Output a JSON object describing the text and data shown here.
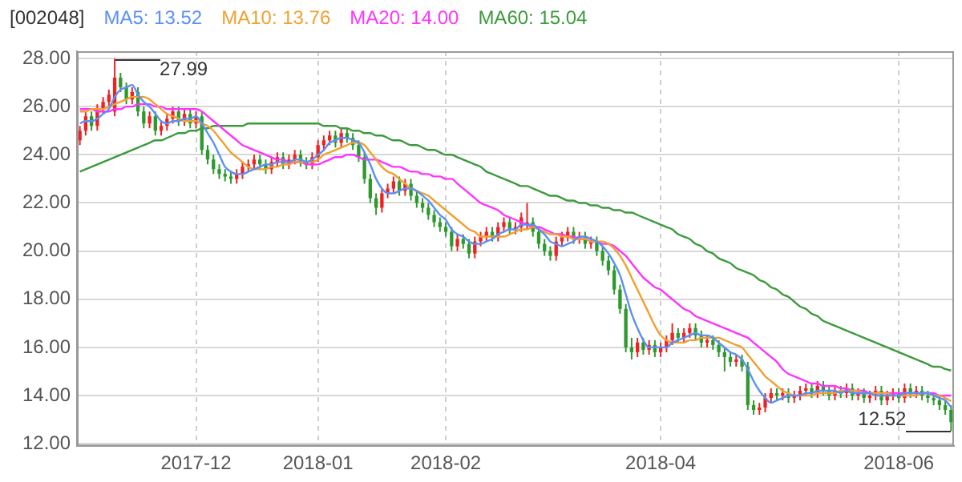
{
  "chart_data": {
    "type": "candlestick",
    "title": "[002048]",
    "legend": "top left",
    "grid": true,
    "categories": [
      null,
      null,
      null,
      null,
      null,
      null,
      null,
      null,
      null,
      null,
      null,
      null,
      null,
      null,
      null,
      null,
      null,
      null,
      null,
      null,
      "2017-12",
      null,
      null,
      null,
      null,
      null,
      null,
      null,
      null,
      null,
      null,
      null,
      null,
      null,
      null,
      null,
      null,
      null,
      null,
      null,
      null,
      "2018-01",
      null,
      null,
      null,
      null,
      null,
      null,
      null,
      null,
      null,
      null,
      null,
      null,
      null,
      null,
      null,
      null,
      null,
      null,
      null,
      null,
      null,
      "2018-02",
      null,
      null,
      null,
      null,
      null,
      null,
      null,
      null,
      null,
      null,
      null,
      null,
      null,
      null,
      null,
      null,
      null,
      null,
      null,
      null,
      null,
      null,
      null,
      null,
      null,
      null,
      null,
      null,
      null,
      null,
      null,
      null,
      null,
      null,
      null,
      null,
      "2018-04",
      null,
      null,
      null,
      null,
      null,
      null,
      null,
      null,
      null,
      null,
      null,
      null,
      null,
      null,
      null,
      null,
      null,
      null,
      null,
      null,
      null,
      null,
      null,
      null,
      null,
      null,
      null,
      null,
      null,
      null,
      null,
      null,
      null,
      null,
      null,
      null,
      null,
      null,
      null,
      null,
      "2018-06",
      null,
      null,
      null,
      null,
      null,
      null,
      null,
      null,
      null
    ],
    "colors": [
      "#ee2222",
      "#ee2222",
      "#2e9a2e",
      "#ee2222",
      "#ee2222",
      "#ee2222",
      "#ee2222",
      "#2e9a2e",
      "#2e9a2e",
      "#ee2222",
      "#2e9a2e",
      "#2e9a2e",
      "#ee2222",
      "#2e9a2e",
      "#ee2222",
      "#ee2222",
      "#ee2222",
      "#2e9a2e",
      "#ee2222",
      "#2e9a2e",
      "#ee2222",
      "#2e9a2e",
      "#2e9a2e",
      "#2e9a2e",
      "#2e9a2e",
      "#2e9a2e",
      "#2e9a2e",
      "#ee2222",
      "#ee2222",
      "#ee2222",
      "#ee2222",
      "#2e9a2e",
      "#2e9a2e",
      "#ee2222",
      "#ee2222",
      "#2e9a2e",
      "#ee2222",
      "#ee2222",
      "#2e9a2e",
      "#2e9a2e",
      "#ee2222",
      "#ee2222",
      "#ee2222",
      "#ee2222",
      "#2e9a2e",
      "#ee2222",
      "#2e9a2e",
      "#2e9a2e",
      "#2e9a2e",
      "#2e9a2e",
      "#2e9a2e",
      "#2e9a2e",
      "#ee2222",
      "#ee2222",
      "#ee2222",
      "#2e9a2e",
      "#ee2222",
      "#2e9a2e",
      "#2e9a2e",
      "#2e9a2e",
      "#2e9a2e",
      "#2e9a2e",
      "#2e9a2e",
      "#2e9a2e",
      "#2e9a2e",
      "#ee2222",
      "#2e9a2e",
      "#2e9a2e",
      "#ee2222",
      "#ee2222",
      "#ee2222",
      "#2e9a2e",
      "#ee2222",
      "#ee2222",
      "#2e9a2e",
      "#ee2222",
      "#ee2222",
      "#ee2222",
      "#2e9a2e",
      "#2e9a2e",
      "#2e9a2e",
      "#2e9a2e",
      "#ee2222",
      "#ee2222",
      "#ee2222",
      "#2e9a2e",
      "#ee2222",
      "#2e9a2e",
      "#ee2222",
      "#2e9a2e",
      "#2e9a2e",
      "#2e9a2e",
      "#2e9a2e",
      "#2e9a2e",
      "#2e9a2e",
      "#2e9a2e",
      "#ee2222",
      "#2e9a2e",
      "#ee2222",
      "#2e9a2e",
      "#ee2222",
      "#ee2222",
      "#ee2222",
      "#2e9a2e",
      "#ee2222",
      "#ee2222",
      "#2e9a2e",
      "#2e9a2e",
      "#ee2222",
      "#2e9a2e",
      "#2e9a2e",
      "#2e9a2e",
      "#2e9a2e",
      "#ee2222",
      "#2e9a2e",
      "#2e9a2e",
      "#2e9a2e",
      "#ee2222",
      "#ee2222",
      "#ee2222",
      "#2e9a2e",
      "#ee2222",
      "#2e9a2e",
      "#ee2222",
      "#ee2222",
      "#ee2222",
      "#2e9a2e",
      "#ee2222",
      "#2e9a2e",
      "#2e9a2e",
      "#ee2222",
      "#2e9a2e",
      "#ee2222",
      "#2e9a2e",
      "#ee2222",
      "#2e9a2e",
      "#ee2222",
      "#ee2222",
      "#2e9a2e",
      "#ee2222",
      "#ee2222",
      "#2e9a2e",
      "#ee2222",
      "#2e9a2e",
      "#ee2222",
      "#2e9a2e",
      "#2e9a2e",
      "#2e9a2e",
      "#2e9a2e",
      "#2e9a2e",
      "#2e9a2e"
    ],
    "ohlc": [
      [
        24.6,
        25.2,
        24.4,
        25.0
      ],
      [
        25.0,
        25.8,
        24.8,
        25.6
      ],
      [
        25.6,
        25.8,
        25.0,
        25.2
      ],
      [
        25.2,
        26.1,
        25.0,
        25.9
      ],
      [
        25.9,
        26.4,
        25.7,
        26.2
      ],
      [
        26.2,
        26.7,
        26.0,
        26.5
      ],
      [
        25.8,
        27.99,
        25.6,
        27.2
      ],
      [
        27.2,
        27.4,
        26.6,
        26.8
      ],
      [
        26.8,
        27.0,
        26.1,
        26.3
      ],
      [
        26.3,
        26.8,
        26.1,
        26.6
      ],
      [
        26.6,
        26.8,
        25.6,
        25.8
      ],
      [
        25.8,
        26.0,
        25.1,
        25.3
      ],
      [
        25.3,
        25.8,
        25.1,
        25.6
      ],
      [
        25.6,
        25.8,
        24.8,
        25.0
      ],
      [
        25.0,
        25.4,
        24.8,
        25.2
      ],
      [
        25.2,
        25.7,
        25.0,
        25.5
      ],
      [
        25.5,
        26.0,
        25.3,
        25.8
      ],
      [
        25.8,
        26.0,
        25.2,
        25.4
      ],
      [
        25.4,
        25.9,
        25.2,
        25.7
      ],
      [
        25.7,
        25.9,
        25.1,
        25.3
      ],
      [
        25.3,
        25.8,
        25.1,
        25.6
      ],
      [
        25.6,
        25.8,
        24.0,
        24.2
      ],
      [
        24.2,
        24.4,
        23.6,
        23.8
      ],
      [
        23.8,
        24.0,
        23.2,
        23.4
      ],
      [
        23.4,
        23.6,
        23.0,
        23.2
      ],
      [
        23.2,
        23.4,
        22.9,
        23.1
      ],
      [
        23.1,
        23.3,
        22.8,
        23.0
      ],
      [
        23.0,
        23.4,
        22.8,
        23.2
      ],
      [
        23.2,
        23.7,
        23.0,
        23.5
      ],
      [
        23.5,
        23.8,
        23.3,
        23.6
      ],
      [
        23.6,
        24.0,
        23.4,
        23.8
      ],
      [
        23.8,
        24.0,
        23.4,
        23.6
      ],
      [
        23.6,
        23.8,
        23.2,
        23.4
      ],
      [
        23.4,
        23.9,
        23.2,
        23.7
      ],
      [
        23.7,
        24.1,
        23.5,
        23.9
      ],
      [
        23.9,
        24.1,
        23.4,
        23.6
      ],
      [
        23.6,
        24.0,
        23.4,
        23.8
      ],
      [
        23.8,
        24.2,
        23.6,
        24.0
      ],
      [
        24.0,
        24.2,
        23.5,
        23.7
      ],
      [
        23.7,
        23.9,
        23.4,
        23.6
      ],
      [
        23.6,
        24.1,
        23.4,
        23.9
      ],
      [
        23.9,
        24.6,
        23.7,
        24.4
      ],
      [
        24.4,
        24.8,
        24.2,
        24.6
      ],
      [
        24.6,
        25.0,
        24.4,
        24.8
      ],
      [
        24.8,
        25.0,
        24.3,
        24.5
      ],
      [
        24.5,
        25.1,
        24.3,
        24.9
      ],
      [
        24.9,
        25.1,
        24.5,
        24.7
      ],
      [
        24.7,
        24.9,
        24.2,
        24.4
      ],
      [
        24.4,
        24.6,
        23.7,
        23.9
      ],
      [
        23.9,
        24.1,
        22.8,
        23.0
      ],
      [
        23.0,
        23.2,
        22.0,
        22.2
      ],
      [
        22.2,
        22.4,
        21.5,
        21.8
      ],
      [
        21.8,
        22.6,
        21.6,
        22.4
      ],
      [
        22.4,
        22.8,
        22.2,
        22.6
      ],
      [
        22.6,
        23.1,
        22.4,
        22.9
      ],
      [
        22.9,
        23.1,
        22.3,
        22.5
      ],
      [
        22.5,
        23.0,
        22.3,
        22.8
      ],
      [
        22.8,
        23.0,
        22.1,
        22.3
      ],
      [
        22.3,
        22.5,
        21.8,
        22.0
      ],
      [
        22.0,
        22.2,
        21.6,
        21.8
      ],
      [
        21.8,
        22.0,
        21.3,
        21.5
      ],
      [
        21.5,
        21.7,
        21.0,
        21.2
      ],
      [
        21.2,
        21.4,
        20.8,
        21.0
      ],
      [
        21.0,
        21.2,
        20.6,
        20.8
      ],
      [
        20.8,
        21.0,
        20.0,
        20.2
      ],
      [
        20.2,
        20.7,
        20.0,
        20.5
      ],
      [
        20.5,
        20.7,
        20.1,
        20.3
      ],
      [
        20.3,
        20.5,
        19.7,
        19.9
      ],
      [
        19.9,
        20.6,
        19.7,
        20.4
      ],
      [
        20.4,
        20.8,
        20.2,
        20.6
      ],
      [
        20.6,
        21.0,
        20.4,
        20.8
      ],
      [
        20.8,
        21.0,
        20.4,
        20.6
      ],
      [
        20.6,
        21.2,
        20.4,
        21.0
      ],
      [
        21.0,
        21.4,
        20.8,
        21.2
      ],
      [
        21.2,
        21.4,
        20.7,
        20.9
      ],
      [
        20.9,
        21.2,
        20.7,
        21.0
      ],
      [
        21.0,
        21.6,
        20.8,
        21.4
      ],
      [
        21.1,
        22.0,
        20.9,
        21.2
      ],
      [
        21.2,
        21.4,
        20.6,
        20.8
      ],
      [
        20.8,
        21.0,
        20.1,
        20.3
      ],
      [
        20.3,
        20.5,
        19.8,
        20.0
      ],
      [
        20.0,
        20.2,
        19.6,
        19.8
      ],
      [
        19.8,
        20.6,
        19.6,
        20.4
      ],
      [
        20.4,
        20.8,
        20.2,
        20.6
      ],
      [
        20.6,
        21.0,
        20.4,
        20.8
      ],
      [
        20.8,
        21.0,
        20.3,
        20.5
      ],
      [
        20.5,
        20.8,
        20.3,
        20.6
      ],
      [
        20.6,
        20.8,
        20.1,
        20.3
      ],
      [
        20.3,
        20.6,
        20.1,
        20.4
      ],
      [
        20.4,
        20.6,
        19.8,
        20.0
      ],
      [
        20.0,
        20.2,
        19.4,
        19.6
      ],
      [
        19.6,
        19.8,
        19.0,
        19.2
      ],
      [
        19.2,
        19.4,
        18.2,
        18.4
      ],
      [
        18.4,
        18.6,
        17.4,
        17.6
      ],
      [
        17.6,
        17.8,
        15.8,
        16.0
      ],
      [
        16.0,
        16.4,
        15.5,
        15.8
      ],
      [
        15.8,
        16.4,
        15.6,
        16.2
      ],
      [
        16.2,
        16.4,
        15.7,
        15.9
      ],
      [
        15.9,
        16.3,
        15.7,
        16.1
      ],
      [
        16.1,
        16.3,
        15.6,
        15.8
      ],
      [
        15.8,
        16.2,
        15.6,
        16.0
      ],
      [
        16.0,
        16.5,
        15.8,
        16.3
      ],
      [
        16.3,
        17.0,
        16.1,
        16.6
      ],
      [
        16.6,
        16.8,
        16.2,
        16.4
      ],
      [
        16.4,
        16.8,
        16.2,
        16.6
      ],
      [
        16.6,
        17.0,
        16.4,
        16.8
      ],
      [
        16.8,
        17.0,
        16.3,
        16.5
      ],
      [
        16.5,
        16.7,
        16.0,
        16.2
      ],
      [
        16.2,
        16.5,
        16.0,
        16.3
      ],
      [
        16.3,
        16.5,
        15.9,
        16.1
      ],
      [
        16.1,
        16.3,
        15.6,
        15.8
      ],
      [
        15.8,
        16.0,
        15.0,
        15.6
      ],
      [
        15.6,
        15.8,
        15.2,
        15.4
      ],
      [
        15.4,
        15.7,
        15.2,
        15.5
      ],
      [
        15.5,
        15.7,
        15.0,
        15.2
      ],
      [
        15.2,
        15.4,
        13.4,
        13.6
      ],
      [
        13.6,
        13.8,
        13.2,
        13.4
      ],
      [
        13.4,
        13.7,
        13.2,
        13.5
      ],
      [
        13.5,
        14.1,
        13.3,
        13.9
      ],
      [
        13.9,
        14.3,
        13.7,
        14.1
      ],
      [
        14.1,
        14.3,
        13.8,
        14.0
      ],
      [
        14.0,
        14.3,
        13.8,
        14.1
      ],
      [
        14.1,
        14.3,
        13.7,
        13.9
      ],
      [
        13.9,
        14.2,
        13.7,
        14.0
      ],
      [
        14.0,
        14.4,
        13.8,
        14.2
      ],
      [
        14.2,
        14.5,
        14.0,
        14.3
      ],
      [
        14.3,
        14.5,
        13.9,
        14.1
      ],
      [
        14.1,
        14.6,
        13.9,
        14.4
      ],
      [
        14.4,
        14.6,
        14.0,
        14.2
      ],
      [
        14.2,
        14.4,
        13.8,
        14.0
      ],
      [
        14.0,
        14.4,
        13.8,
        14.2
      ],
      [
        14.2,
        14.4,
        13.9,
        14.1
      ],
      [
        14.1,
        14.5,
        13.9,
        14.3
      ],
      [
        14.3,
        14.5,
        13.8,
        14.0
      ],
      [
        14.0,
        14.3,
        13.8,
        14.1
      ],
      [
        14.1,
        14.3,
        13.7,
        13.9
      ],
      [
        13.9,
        14.2,
        13.7,
        14.0
      ],
      [
        14.0,
        14.4,
        13.8,
        14.2
      ],
      [
        14.2,
        14.4,
        13.6,
        13.8
      ],
      [
        13.8,
        14.2,
        13.6,
        14.0
      ],
      [
        14.0,
        14.3,
        13.8,
        14.1
      ],
      [
        14.1,
        14.3,
        13.7,
        13.9
      ],
      [
        13.9,
        14.5,
        13.7,
        14.3
      ],
      [
        14.3,
        14.5,
        13.9,
        14.1
      ],
      [
        14.1,
        14.4,
        13.9,
        14.2
      ],
      [
        14.2,
        14.4,
        13.8,
        14.0
      ],
      [
        14.0,
        14.2,
        13.7,
        13.9
      ],
      [
        13.9,
        14.1,
        13.6,
        13.8
      ],
      [
        13.8,
        14.0,
        13.4,
        13.6
      ],
      [
        13.6,
        13.8,
        13.2,
        13.4
      ],
      [
        13.4,
        13.6,
        12.52,
        12.9
      ]
    ],
    "series": [
      {
        "name": "MA5: 13.52",
        "type": "line",
        "color": "#5b8ff9",
        "values": [
          25.3,
          25.4,
          25.4,
          25.5,
          25.7,
          25.9,
          26.4,
          26.7,
          26.8,
          26.9,
          26.5,
          26.2,
          26.0,
          25.7,
          25.4,
          25.3,
          25.4,
          25.4,
          25.5,
          25.5,
          25.6,
          25.3,
          24.9,
          24.5,
          24.0,
          23.5,
          23.3,
          23.2,
          23.2,
          23.3,
          23.4,
          23.5,
          23.6,
          23.6,
          23.7,
          23.7,
          23.7,
          23.8,
          23.8,
          23.7,
          23.8,
          24.0,
          24.2,
          24.5,
          24.6,
          24.7,
          24.7,
          24.6,
          24.5,
          24.1,
          23.6,
          23.0,
          22.6,
          22.4,
          22.4,
          22.5,
          22.6,
          22.6,
          22.5,
          22.3,
          22.1,
          21.8,
          21.5,
          21.3,
          20.9,
          20.7,
          20.6,
          20.4,
          20.3,
          20.3,
          20.4,
          20.5,
          20.7,
          20.8,
          20.9,
          20.9,
          21.1,
          21.1,
          21.1,
          20.9,
          20.7,
          20.4,
          20.3,
          20.2,
          20.3,
          20.4,
          20.6,
          20.6,
          20.5,
          20.4,
          20.2,
          19.9,
          19.5,
          19.0,
          18.2,
          17.4,
          16.8,
          16.3,
          16.0,
          16.0,
          16.0,
          16.0,
          16.2,
          16.3,
          16.4,
          16.5,
          16.6,
          16.5,
          16.5,
          16.4,
          16.2,
          16.0,
          15.8,
          15.7,
          15.5,
          15.1,
          14.6,
          14.2,
          13.9,
          13.7,
          13.8,
          13.9,
          14.0,
          14.0,
          14.0,
          14.1,
          14.1,
          14.2,
          14.2,
          14.2,
          14.2,
          14.1,
          14.2,
          14.1,
          14.1,
          14.1,
          14.1,
          14.0,
          14.0,
          14.0,
          14.0,
          14.0,
          14.1,
          14.1,
          14.1,
          14.1,
          14.1,
          14.0,
          13.9,
          13.8,
          13.52
        ]
      },
      {
        "name": "MA10: 13.76",
        "type": "line",
        "color": "#f0a030",
        "values": [
          25.8,
          25.8,
          25.9,
          25.9,
          25.9,
          26.0,
          26.1,
          26.2,
          26.3,
          26.4,
          26.4,
          26.4,
          26.3,
          26.1,
          25.9,
          25.7,
          25.6,
          25.5,
          25.4,
          25.4,
          25.4,
          25.3,
          25.2,
          25.0,
          24.7,
          24.4,
          24.1,
          23.9,
          23.7,
          23.5,
          23.4,
          23.4,
          23.4,
          23.5,
          23.5,
          23.6,
          23.6,
          23.7,
          23.7,
          23.7,
          23.7,
          23.8,
          24.0,
          24.1,
          24.2,
          24.3,
          24.4,
          24.5,
          24.5,
          24.4,
          24.1,
          23.8,
          23.5,
          23.3,
          23.2,
          23.0,
          22.8,
          22.6,
          22.5,
          22.4,
          22.3,
          22.1,
          21.9,
          21.7,
          21.5,
          21.3,
          21.1,
          20.9,
          20.8,
          20.6,
          20.6,
          20.6,
          20.6,
          20.6,
          20.7,
          20.8,
          20.9,
          20.9,
          21.0,
          20.9,
          20.8,
          20.7,
          20.7,
          20.6,
          20.6,
          20.5,
          20.5,
          20.5,
          20.4,
          20.4,
          20.4,
          20.3,
          20.1,
          19.8,
          19.4,
          18.9,
          18.4,
          17.9,
          17.4,
          16.9,
          16.5,
          16.3,
          16.2,
          16.2,
          16.2,
          16.3,
          16.3,
          16.4,
          16.4,
          16.4,
          16.4,
          16.3,
          16.2,
          16.1,
          16.0,
          15.7,
          15.4,
          15.1,
          14.8,
          14.6,
          14.4,
          14.2,
          14.1,
          14.0,
          14.0,
          14.0,
          14.0,
          14.1,
          14.1,
          14.1,
          14.1,
          14.2,
          14.2,
          14.2,
          14.2,
          14.1,
          14.1,
          14.1,
          14.1,
          14.1,
          14.0,
          14.0,
          14.0,
          14.0,
          14.0,
          14.1,
          14.1,
          14.0,
          14.0,
          13.9,
          13.76
        ]
      },
      {
        "name": "MA20: 14.00",
        "type": "line",
        "color": "#ff33ff",
        "values": [
          25.9,
          25.9,
          25.9,
          25.8,
          25.8,
          25.8,
          25.9,
          25.9,
          26.0,
          26.0,
          26.1,
          26.1,
          26.1,
          26.0,
          26.0,
          25.9,
          25.9,
          25.9,
          25.9,
          25.9,
          25.9,
          25.8,
          25.6,
          25.4,
          25.2,
          25.0,
          24.8,
          24.6,
          24.4,
          24.3,
          24.2,
          24.1,
          24.0,
          23.9,
          23.8,
          23.8,
          23.7,
          23.7,
          23.7,
          23.6,
          23.6,
          23.6,
          23.7,
          23.8,
          23.9,
          23.9,
          24.0,
          24.0,
          23.9,
          23.8,
          23.8,
          23.8,
          23.7,
          23.6,
          23.5,
          23.5,
          23.4,
          23.3,
          23.3,
          23.2,
          23.2,
          23.1,
          23.1,
          23.0,
          23.0,
          22.8,
          22.6,
          22.4,
          22.2,
          22.0,
          21.9,
          21.8,
          21.7,
          21.5,
          21.4,
          21.3,
          21.2,
          21.1,
          21.0,
          21.0,
          20.9,
          20.8,
          20.7,
          20.7,
          20.6,
          20.6,
          20.5,
          20.5,
          20.4,
          20.4,
          20.3,
          20.3,
          20.2,
          20.0,
          19.8,
          19.5,
          19.2,
          18.9,
          18.7,
          18.5,
          18.4,
          18.2,
          18.0,
          17.8,
          17.6,
          17.5,
          17.3,
          17.2,
          17.1,
          17.0,
          16.9,
          16.8,
          16.7,
          16.6,
          16.5,
          16.4,
          16.2,
          16.0,
          15.8,
          15.6,
          15.4,
          15.1,
          14.9,
          14.8,
          14.7,
          14.6,
          14.5,
          14.5,
          14.4,
          14.4,
          14.4,
          14.3,
          14.3,
          14.2,
          14.2,
          14.2,
          14.1,
          14.1,
          14.1,
          14.1,
          14.1,
          14.1,
          14.1,
          14.1,
          14.1,
          14.1,
          14.1,
          14.1,
          14.0,
          14.0,
          14.0
        ]
      },
      {
        "name": "MA60: 15.04",
        "type": "line",
        "color": "#3c9a3c",
        "values": [
          23.3,
          23.4,
          23.5,
          23.6,
          23.7,
          23.8,
          23.9,
          24.0,
          24.1,
          24.2,
          24.3,
          24.4,
          24.5,
          24.6,
          24.6,
          24.7,
          24.8,
          24.9,
          24.9,
          25.0,
          25.0,
          25.1,
          25.1,
          25.2,
          25.2,
          25.2,
          25.2,
          25.2,
          25.2,
          25.3,
          25.3,
          25.3,
          25.3,
          25.3,
          25.3,
          25.3,
          25.3,
          25.3,
          25.3,
          25.3,
          25.3,
          25.3,
          25.2,
          25.2,
          25.2,
          25.1,
          25.1,
          25.0,
          25.0,
          24.9,
          24.9,
          24.8,
          24.8,
          24.7,
          24.6,
          24.6,
          24.5,
          24.4,
          24.4,
          24.3,
          24.2,
          24.2,
          24.1,
          24.0,
          24.0,
          23.9,
          23.8,
          23.7,
          23.6,
          23.5,
          23.3,
          23.2,
          23.1,
          23.0,
          22.9,
          22.8,
          22.7,
          22.7,
          22.6,
          22.5,
          22.4,
          22.3,
          22.3,
          22.2,
          22.1,
          22.1,
          22.0,
          22.0,
          21.9,
          21.9,
          21.8,
          21.8,
          21.7,
          21.7,
          21.6,
          21.6,
          21.5,
          21.4,
          21.3,
          21.2,
          21.1,
          21.0,
          20.9,
          20.7,
          20.6,
          20.5,
          20.3,
          20.2,
          20.0,
          19.9,
          19.7,
          19.6,
          19.5,
          19.3,
          19.2,
          19.1,
          19.0,
          18.8,
          18.7,
          18.5,
          18.4,
          18.2,
          18.1,
          17.9,
          17.7,
          17.6,
          17.4,
          17.3,
          17.1,
          17.0,
          16.9,
          16.8,
          16.7,
          16.6,
          16.5,
          16.4,
          16.3,
          16.2,
          16.1,
          16.0,
          15.9,
          15.8,
          15.7,
          15.6,
          15.5,
          15.4,
          15.3,
          15.2,
          15.2,
          15.1,
          15.04
        ]
      }
    ],
    "annotations": [
      "27.99",
      "12.52"
    ],
    "ylim": [
      11.9,
      28.3
    ],
    "yticks": [
      {
        "value": 12,
        "label": "12.00"
      },
      {
        "value": 14,
        "label": "14.00"
      },
      {
        "value": 16,
        "label": "16.00"
      },
      {
        "value": 18,
        "label": "18.00"
      },
      {
        "value": 20,
        "label": "20.00"
      },
      {
        "value": 22,
        "label": "22.00"
      },
      {
        "value": 24,
        "label": "24.00"
      },
      {
        "value": 26,
        "label": "26.00"
      },
      {
        "value": 28,
        "label": "28.00"
      }
    ]
  }
}
